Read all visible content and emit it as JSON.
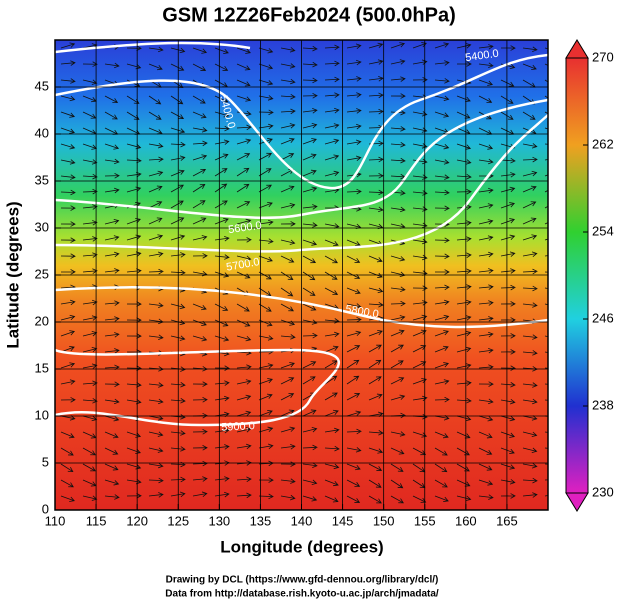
{
  "chart_data": {
    "type": "map",
    "title": "GSM 12Z26Feb2024 (500.0hPa)",
    "xlabel": "Longitude (degrees)",
    "ylabel": "Latitude  (degrees)",
    "xlim": [
      110,
      170
    ],
    "ylim": [
      0,
      50
    ],
    "xticks": [
      110,
      115,
      120,
      125,
      130,
      135,
      140,
      145,
      150,
      155,
      160,
      165
    ],
    "yticks": [
      0,
      5,
      10,
      15,
      20,
      25,
      30,
      35,
      40,
      45
    ],
    "grid": true,
    "colorbar": {
      "lim": [
        230,
        270
      ],
      "ticks": [
        230,
        238,
        246,
        254,
        262,
        270
      ]
    },
    "contour_labels": [
      "5400.0",
      "5400.0",
      "5600.0",
      "5700.0",
      "5800.0",
      "5900.0"
    ]
  },
  "footer": [
    "Drawing by DCL (https://www.gfd-dennou.org/library/dcl/)",
    "Data from http://database.rish.kyoto-u.ac.jp/arch/jmadata/"
  ]
}
